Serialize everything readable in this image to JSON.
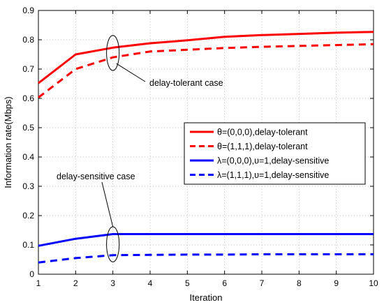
{
  "chart_data": {
    "type": "line",
    "xlabel": "Iteration",
    "ylabel": "Information rate(Mbps)",
    "xlim": [
      1,
      10
    ],
    "ylim": [
      0,
      0.9
    ],
    "xticks": [
      "1",
      "2",
      "3",
      "4",
      "5",
      "6",
      "7",
      "8",
      "9",
      "10"
    ],
    "yticks": [
      "0",
      "0.1",
      "0.2",
      "0.3",
      "0.4",
      "0.5",
      "0.6",
      "0.7",
      "0.8",
      "0.9"
    ],
    "grid": true,
    "legend_position": "center-right",
    "x": [
      1,
      2,
      3,
      4,
      5,
      6,
      7,
      8,
      9,
      10
    ],
    "series": [
      {
        "name": "θ=(0,0,0),delay-tolerant",
        "color": "#ff0000",
        "dash": "solid",
        "values": [
          0.652,
          0.75,
          0.773,
          0.788,
          0.798,
          0.81,
          0.816,
          0.82,
          0.824,
          0.827
        ]
      },
      {
        "name": "θ=(1,1,1),delay-tolerant",
        "color": "#ff0000",
        "dash": "dashed",
        "values": [
          0.603,
          0.7,
          0.74,
          0.76,
          0.766,
          0.772,
          0.776,
          0.779,
          0.782,
          0.785
        ]
      },
      {
        "name": "λ=(0,0,0),υ=1,delay-sensitive",
        "color": "#0000ff",
        "dash": "solid",
        "values": [
          0.097,
          0.121,
          0.137,
          0.137,
          0.137,
          0.137,
          0.137,
          0.137,
          0.137,
          0.137
        ]
      },
      {
        "name": "λ=(1,1,1),υ=1,delay-sensitive",
        "color": "#0000ff",
        "dash": "dashed",
        "values": [
          0.04,
          0.055,
          0.065,
          0.066,
          0.067,
          0.067,
          0.068,
          0.068,
          0.068,
          0.068
        ]
      }
    ],
    "annotations": [
      {
        "text": "delay-tolerant case",
        "ellipse_center": [
          3,
          0.755
        ],
        "ellipse_semi_axes": [
          0.17,
          0.06
        ]
      },
      {
        "text": "delay-sensitive case",
        "ellipse_center": [
          3,
          0.102
        ],
        "ellipse_semi_axes": [
          0.17,
          0.06
        ]
      }
    ]
  }
}
